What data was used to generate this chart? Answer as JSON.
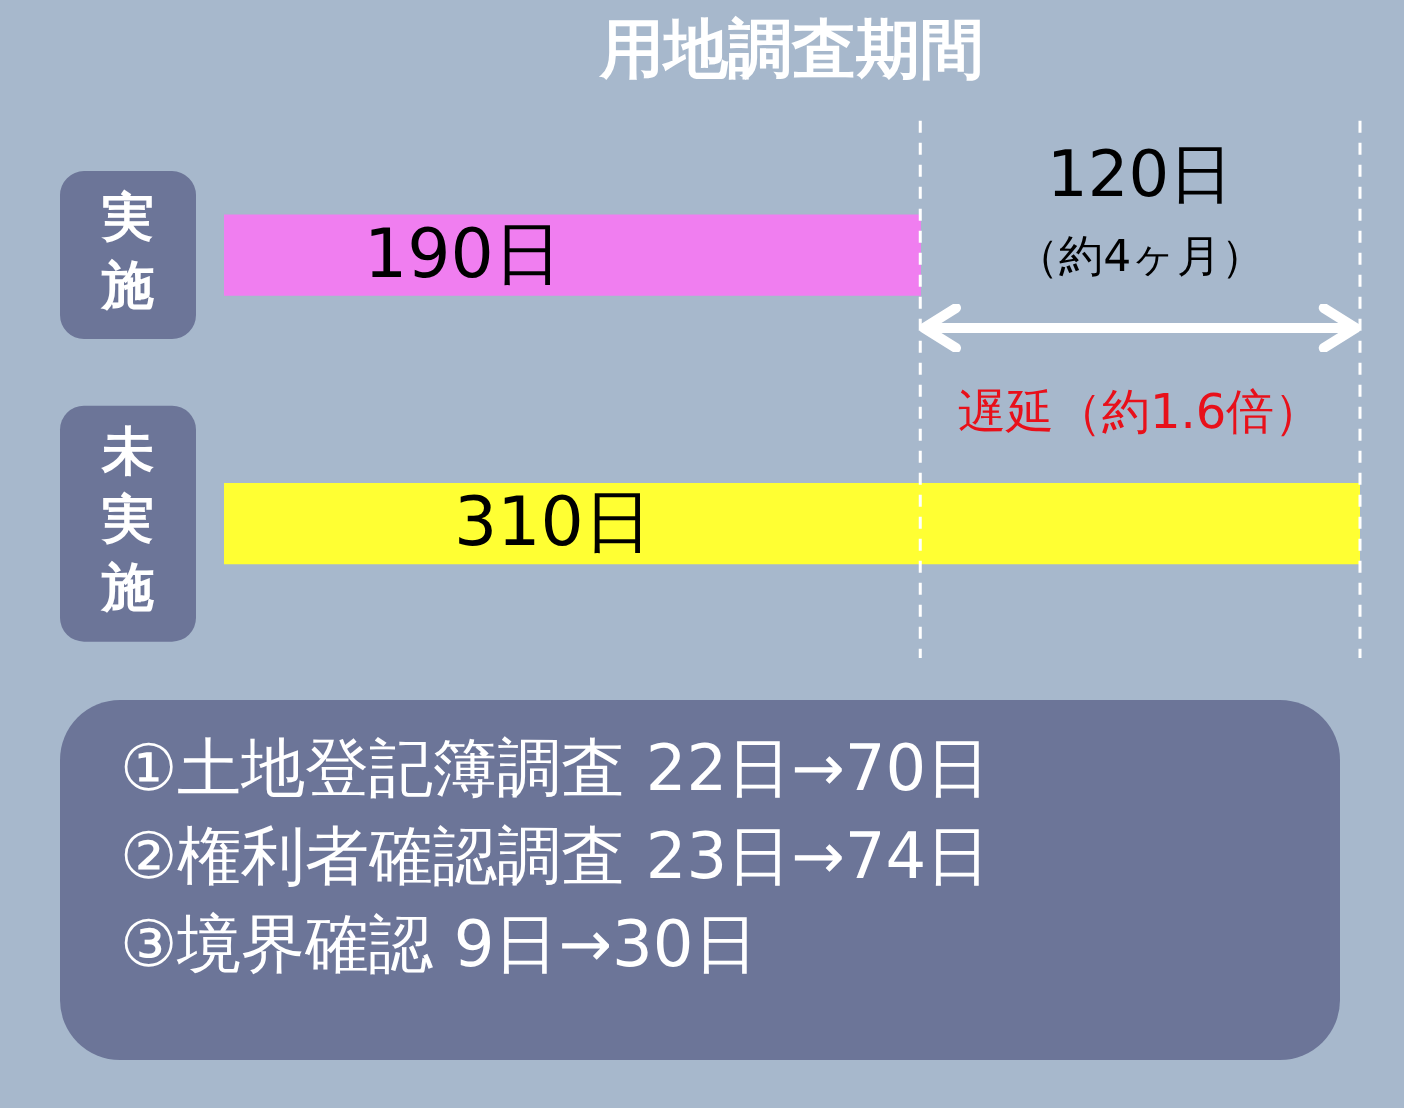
{
  "chart_data": {
    "type": "bar",
    "orientation": "horizontal",
    "title": "用地調査期間",
    "categories": [
      "実施",
      "未実施"
    ],
    "values": [
      190,
      310
    ],
    "colors": [
      "#f07ef0",
      "#ffff33"
    ],
    "value_labels": [
      "190日",
      "310日"
    ],
    "ref_lines": [
      {
        "axis": "x",
        "value": 190,
        "color": "#ffffff",
        "line_style": "dashed"
      },
      {
        "axis": "x",
        "value": 310,
        "color": "#ffffff",
        "line_style": "dashed"
      }
    ],
    "annotations": [
      "120日",
      "（約4ヶ月）",
      "遅延（約1.6倍）",
      "①土地登記簿調査 22日→70日",
      "②権利者確認調査 23日→74日",
      "③境界確認 9日→30日"
    ],
    "grid": false,
    "legend": false,
    "tick_labels": false
  }
}
